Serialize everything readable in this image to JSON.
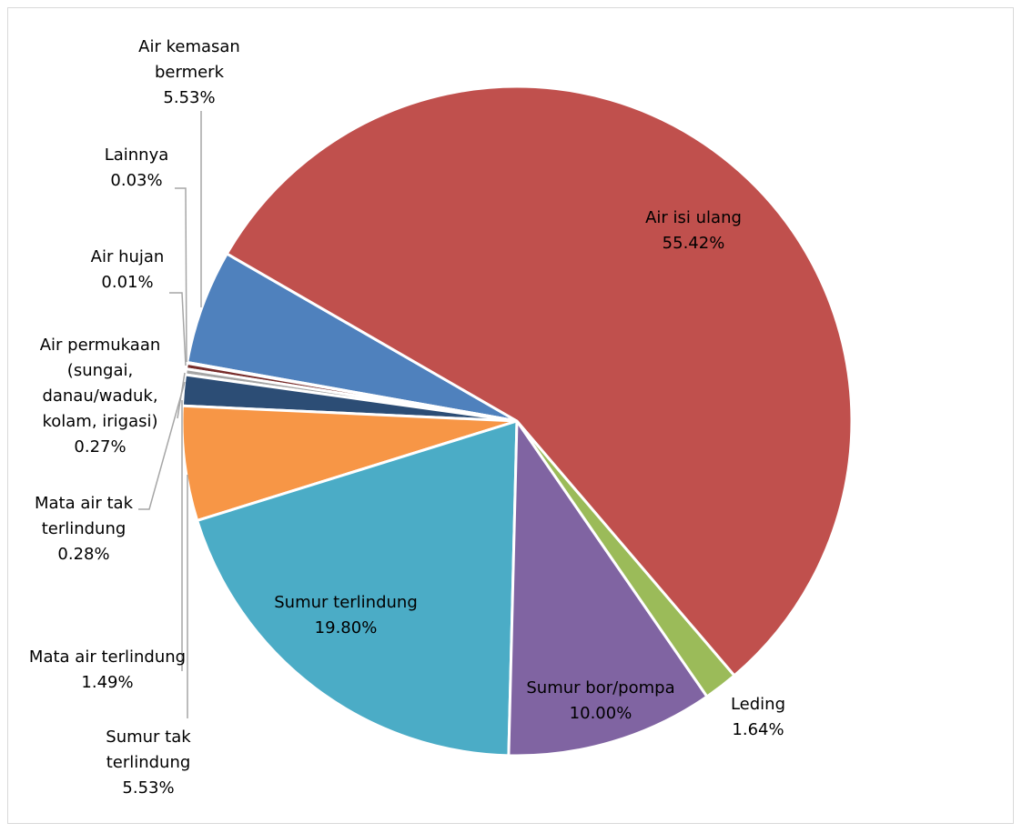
{
  "chart_data": {
    "type": "pie",
    "categories": [
      "Air isi ulang",
      "Leding",
      "Sumur bor/pompa",
      "Sumur terlindung",
      "Sumur tak terlindung",
      "Mata air terlindung",
      "Mata air tak terlindung",
      "Air permukaan (sungai, danau/waduk, kolam, irigasi)",
      "Air hujan",
      "Lainnya",
      "Air kemasan bermerk"
    ],
    "values": [
      55.42,
      1.64,
      10.0,
      19.8,
      5.53,
      1.49,
      0.28,
      0.27,
      0.01,
      0.03,
      5.53
    ],
    "value_labels": [
      "55.42%",
      "1.64%",
      "10.00%",
      "19.80%",
      "5.53%",
      "1.49%",
      "0.28%",
      "0.27%",
      "0.01%",
      "0.03%",
      "5.53%"
    ],
    "colors": [
      "#c0504d",
      "#9bbb59",
      "#8064a2",
      "#4bacc6",
      "#f79646",
      "#2c4d75",
      "#a5a5a5",
      "#772c2a",
      "#4d3b62",
      "#5f7530",
      "#4f81bd"
    ]
  }
}
